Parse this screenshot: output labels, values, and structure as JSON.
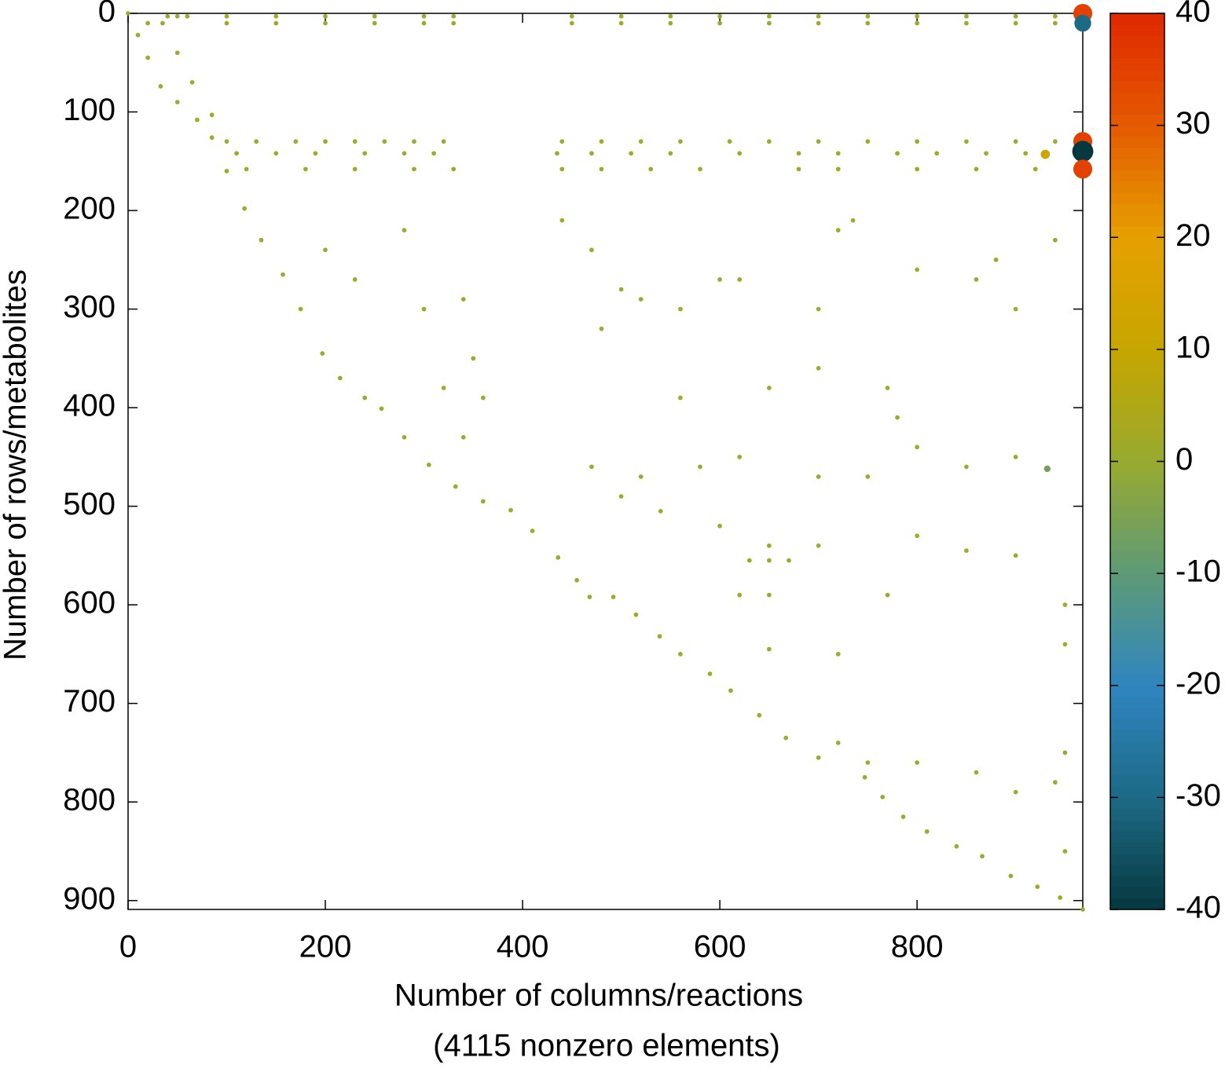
{
  "chart_data": {
    "type": "scatter",
    "xlabel": "Number of columns/reactions",
    "xlabel2": "(4115 nonzero elements)",
    "ylabel": "Number of rows/metabolites",
    "xlim": [
      0,
      968
    ],
    "ylim": [
      0,
      909
    ],
    "y_reversed": true,
    "xticks": [
      0,
      200,
      400,
      600,
      800
    ],
    "yticks": [
      0,
      100,
      200,
      300,
      400,
      500,
      600,
      700,
      800,
      900
    ],
    "clim": [
      -40,
      40
    ],
    "cticks": [
      40,
      30,
      20,
      10,
      0,
      -10,
      -20,
      -30,
      -40
    ],
    "colormap": [
      "#06393f",
      "#1d6a86",
      "#2f86c0",
      "#5d9a76",
      "#98aa30",
      "#c6a600",
      "#e6a000",
      "#e45a00",
      "#e02800"
    ],
    "points": [
      {
        "x": 0,
        "y": 0,
        "value": 1
      },
      {
        "x": 10,
        "y": 22,
        "value": 1
      },
      {
        "x": 20,
        "y": 45,
        "value": 1
      },
      {
        "x": 33,
        "y": 74,
        "value": 1
      },
      {
        "x": 50,
        "y": 90,
        "value": 1
      },
      {
        "x": 70,
        "y": 108,
        "value": 1
      },
      {
        "x": 85,
        "y": 126,
        "value": 1
      },
      {
        "x": 100,
        "y": 160,
        "value": 1
      },
      {
        "x": 118,
        "y": 198,
        "value": 1
      },
      {
        "x": 135,
        "y": 230,
        "value": 1
      },
      {
        "x": 157,
        "y": 265,
        "value": 1
      },
      {
        "x": 175,
        "y": 300,
        "value": 1
      },
      {
        "x": 197,
        "y": 345,
        "value": 1
      },
      {
        "x": 215,
        "y": 370,
        "value": 1
      },
      {
        "x": 240,
        "y": 390,
        "value": 1
      },
      {
        "x": 257,
        "y": 401,
        "value": 1
      },
      {
        "x": 280,
        "y": 430,
        "value": 1
      },
      {
        "x": 305,
        "y": 458,
        "value": 1
      },
      {
        "x": 332,
        "y": 480,
        "value": 1
      },
      {
        "x": 360,
        "y": 495,
        "value": 1
      },
      {
        "x": 388,
        "y": 504,
        "value": 1
      },
      {
        "x": 410,
        "y": 525,
        "value": 1
      },
      {
        "x": 436,
        "y": 552,
        "value": 1
      },
      {
        "x": 455,
        "y": 575,
        "value": 1
      },
      {
        "x": 468,
        "y": 592,
        "value": 1
      },
      {
        "x": 492,
        "y": 592,
        "value": 1
      },
      {
        "x": 515,
        "y": 610,
        "value": 1
      },
      {
        "x": 539,
        "y": 632,
        "value": 1
      },
      {
        "x": 560,
        "y": 650,
        "value": 1
      },
      {
        "x": 590,
        "y": 670,
        "value": 1
      },
      {
        "x": 611,
        "y": 687,
        "value": 1
      },
      {
        "x": 640,
        "y": 712,
        "value": 1
      },
      {
        "x": 667,
        "y": 735,
        "value": 1
      },
      {
        "x": 700,
        "y": 755,
        "value": 1
      },
      {
        "x": 747,
        "y": 775,
        "value": 1
      },
      {
        "x": 765,
        "y": 795,
        "value": 1
      },
      {
        "x": 786,
        "y": 815,
        "value": 1
      },
      {
        "x": 810,
        "y": 830,
        "value": 1
      },
      {
        "x": 840,
        "y": 845,
        "value": 1
      },
      {
        "x": 866,
        "y": 855,
        "value": 1
      },
      {
        "x": 895,
        "y": 875,
        "value": 1
      },
      {
        "x": 922,
        "y": 886,
        "value": 1
      },
      {
        "x": 945,
        "y": 897,
        "value": 1
      },
      {
        "x": 968,
        "y": 909,
        "value": 1
      },
      {
        "x": 35,
        "y": 10,
        "value": 1
      },
      {
        "x": 50,
        "y": 40,
        "value": 1
      },
      {
        "x": 65,
        "y": 70,
        "value": 1
      },
      {
        "x": 85,
        "y": 103,
        "value": 1
      },
      {
        "x": 40,
        "y": 3,
        "value": 1
      },
      {
        "x": 50,
        "y": 3,
        "value": 1
      },
      {
        "x": 60,
        "y": 3,
        "value": 1
      },
      {
        "x": 100,
        "y": 3,
        "value": 1
      },
      {
        "x": 150,
        "y": 3,
        "value": 1
      },
      {
        "x": 200,
        "y": 3,
        "value": 1
      },
      {
        "x": 250,
        "y": 3,
        "value": 1
      },
      {
        "x": 300,
        "y": 3,
        "value": 1
      },
      {
        "x": 330,
        "y": 3,
        "value": 1
      },
      {
        "x": 450,
        "y": 3,
        "value": 1
      },
      {
        "x": 500,
        "y": 3,
        "value": 1
      },
      {
        "x": 550,
        "y": 3,
        "value": 1
      },
      {
        "x": 600,
        "y": 3,
        "value": 1
      },
      {
        "x": 650,
        "y": 3,
        "value": 1
      },
      {
        "x": 700,
        "y": 3,
        "value": 1
      },
      {
        "x": 750,
        "y": 3,
        "value": 1
      },
      {
        "x": 800,
        "y": 3,
        "value": 1
      },
      {
        "x": 850,
        "y": 3,
        "value": 1
      },
      {
        "x": 900,
        "y": 3,
        "value": 1
      },
      {
        "x": 940,
        "y": 3,
        "value": 1
      },
      {
        "x": 20,
        "y": 10,
        "value": 1
      },
      {
        "x": 100,
        "y": 10,
        "value": 1
      },
      {
        "x": 150,
        "y": 10,
        "value": 1
      },
      {
        "x": 200,
        "y": 10,
        "value": 1
      },
      {
        "x": 250,
        "y": 10,
        "value": 1
      },
      {
        "x": 300,
        "y": 10,
        "value": 1
      },
      {
        "x": 330,
        "y": 10,
        "value": 1
      },
      {
        "x": 450,
        "y": 10,
        "value": 1
      },
      {
        "x": 500,
        "y": 10,
        "value": 1
      },
      {
        "x": 550,
        "y": 10,
        "value": 1
      },
      {
        "x": 600,
        "y": 10,
        "value": 1
      },
      {
        "x": 650,
        "y": 10,
        "value": 1
      },
      {
        "x": 700,
        "y": 10,
        "value": 1
      },
      {
        "x": 750,
        "y": 10,
        "value": 1
      },
      {
        "x": 800,
        "y": 10,
        "value": 1
      },
      {
        "x": 850,
        "y": 10,
        "value": 1
      },
      {
        "x": 900,
        "y": 10,
        "value": 1
      },
      {
        "x": 940,
        "y": 10,
        "value": 1
      },
      {
        "x": 100,
        "y": 130,
        "value": 1
      },
      {
        "x": 130,
        "y": 130,
        "value": 1
      },
      {
        "x": 170,
        "y": 130,
        "value": 1
      },
      {
        "x": 200,
        "y": 130,
        "value": 1
      },
      {
        "x": 230,
        "y": 130,
        "value": 1
      },
      {
        "x": 260,
        "y": 130,
        "value": 1
      },
      {
        "x": 290,
        "y": 130,
        "value": 1
      },
      {
        "x": 320,
        "y": 130,
        "value": 1
      },
      {
        "x": 440,
        "y": 130,
        "value": 1
      },
      {
        "x": 480,
        "y": 130,
        "value": 1
      },
      {
        "x": 520,
        "y": 130,
        "value": 1
      },
      {
        "x": 560,
        "y": 130,
        "value": 1
      },
      {
        "x": 610,
        "y": 130,
        "value": 1
      },
      {
        "x": 650,
        "y": 130,
        "value": 1
      },
      {
        "x": 700,
        "y": 130,
        "value": 1
      },
      {
        "x": 750,
        "y": 130,
        "value": 1
      },
      {
        "x": 800,
        "y": 130,
        "value": 1
      },
      {
        "x": 850,
        "y": 130,
        "value": 1
      },
      {
        "x": 900,
        "y": 130,
        "value": 1
      },
      {
        "x": 940,
        "y": 130,
        "value": 1
      },
      {
        "x": 110,
        "y": 142,
        "value": 1
      },
      {
        "x": 150,
        "y": 142,
        "value": 1
      },
      {
        "x": 190,
        "y": 142,
        "value": 1
      },
      {
        "x": 240,
        "y": 142,
        "value": 1
      },
      {
        "x": 280,
        "y": 142,
        "value": 1
      },
      {
        "x": 310,
        "y": 142,
        "value": 1
      },
      {
        "x": 435,
        "y": 142,
        "value": 1
      },
      {
        "x": 470,
        "y": 142,
        "value": 1
      },
      {
        "x": 510,
        "y": 142,
        "value": 1
      },
      {
        "x": 550,
        "y": 142,
        "value": 1
      },
      {
        "x": 620,
        "y": 142,
        "value": 1
      },
      {
        "x": 680,
        "y": 142,
        "value": 1
      },
      {
        "x": 720,
        "y": 142,
        "value": 1
      },
      {
        "x": 780,
        "y": 142,
        "value": 1
      },
      {
        "x": 820,
        "y": 142,
        "value": 1
      },
      {
        "x": 870,
        "y": 142,
        "value": 1
      },
      {
        "x": 910,
        "y": 142,
        "value": 1
      },
      {
        "x": 120,
        "y": 158,
        "value": 1
      },
      {
        "x": 180,
        "y": 158,
        "value": 1
      },
      {
        "x": 230,
        "y": 158,
        "value": 1
      },
      {
        "x": 290,
        "y": 158,
        "value": 1
      },
      {
        "x": 330,
        "y": 158,
        "value": 1
      },
      {
        "x": 440,
        "y": 158,
        "value": 1
      },
      {
        "x": 480,
        "y": 158,
        "value": 1
      },
      {
        "x": 530,
        "y": 158,
        "value": 1
      },
      {
        "x": 580,
        "y": 158,
        "value": 1
      },
      {
        "x": 680,
        "y": 158,
        "value": 1
      },
      {
        "x": 720,
        "y": 158,
        "value": 1
      },
      {
        "x": 800,
        "y": 158,
        "value": 1
      },
      {
        "x": 860,
        "y": 158,
        "value": 1
      },
      {
        "x": 920,
        "y": 158,
        "value": 1
      },
      {
        "x": 200,
        "y": 240,
        "value": 1
      },
      {
        "x": 230,
        "y": 270,
        "value": 1
      },
      {
        "x": 280,
        "y": 220,
        "value": 1
      },
      {
        "x": 340,
        "y": 290,
        "value": 1
      },
      {
        "x": 350,
        "y": 350,
        "value": 1
      },
      {
        "x": 360,
        "y": 390,
        "value": 1
      },
      {
        "x": 300,
        "y": 300,
        "value": 1
      },
      {
        "x": 500,
        "y": 280,
        "value": 1
      },
      {
        "x": 520,
        "y": 290,
        "value": 1
      },
      {
        "x": 560,
        "y": 300,
        "value": 1
      },
      {
        "x": 600,
        "y": 270,
        "value": 1
      },
      {
        "x": 620,
        "y": 270,
        "value": 1
      },
      {
        "x": 700,
        "y": 300,
        "value": 1
      },
      {
        "x": 720,
        "y": 220,
        "value": 1
      },
      {
        "x": 735,
        "y": 210,
        "value": 1
      },
      {
        "x": 800,
        "y": 260,
        "value": 1
      },
      {
        "x": 860,
        "y": 270,
        "value": 1
      },
      {
        "x": 880,
        "y": 250,
        "value": 1
      },
      {
        "x": 900,
        "y": 300,
        "value": 1
      },
      {
        "x": 940,
        "y": 230,
        "value": 1
      },
      {
        "x": 560,
        "y": 390,
        "value": 1
      },
      {
        "x": 650,
        "y": 380,
        "value": 1
      },
      {
        "x": 700,
        "y": 360,
        "value": 1
      },
      {
        "x": 770,
        "y": 380,
        "value": 1
      },
      {
        "x": 780,
        "y": 410,
        "value": 1
      },
      {
        "x": 800,
        "y": 440,
        "value": 1
      },
      {
        "x": 470,
        "y": 460,
        "value": 1
      },
      {
        "x": 520,
        "y": 470,
        "value": 1
      },
      {
        "x": 580,
        "y": 460,
        "value": 1
      },
      {
        "x": 620,
        "y": 450,
        "value": 1
      },
      {
        "x": 700,
        "y": 470,
        "value": 1
      },
      {
        "x": 750,
        "y": 470,
        "value": 1
      },
      {
        "x": 850,
        "y": 460,
        "value": 1
      },
      {
        "x": 900,
        "y": 450,
        "value": 1
      },
      {
        "x": 500,
        "y": 490,
        "value": 1
      },
      {
        "x": 540,
        "y": 505,
        "value": 1
      },
      {
        "x": 600,
        "y": 520,
        "value": 1
      },
      {
        "x": 650,
        "y": 540,
        "value": 1
      },
      {
        "x": 700,
        "y": 540,
        "value": 1
      },
      {
        "x": 800,
        "y": 530,
        "value": 1
      },
      {
        "x": 850,
        "y": 545,
        "value": 1
      },
      {
        "x": 900,
        "y": 550,
        "value": 1
      },
      {
        "x": 630,
        "y": 555,
        "value": 1
      },
      {
        "x": 650,
        "y": 555,
        "value": 1
      },
      {
        "x": 670,
        "y": 555,
        "value": 1
      },
      {
        "x": 620,
        "y": 590,
        "value": 1
      },
      {
        "x": 650,
        "y": 590,
        "value": 1
      },
      {
        "x": 770,
        "y": 590,
        "value": 1
      },
      {
        "x": 720,
        "y": 650,
        "value": 1
      },
      {
        "x": 650,
        "y": 645,
        "value": 1
      },
      {
        "x": 720,
        "y": 740,
        "value": 1
      },
      {
        "x": 750,
        "y": 760,
        "value": 1
      },
      {
        "x": 800,
        "y": 760,
        "value": 1
      },
      {
        "x": 860,
        "y": 770,
        "value": 1
      },
      {
        "x": 900,
        "y": 790,
        "value": 1
      },
      {
        "x": 940,
        "y": 780,
        "value": 1
      },
      {
        "x": 440,
        "y": 210,
        "value": 1
      },
      {
        "x": 470,
        "y": 240,
        "value": 1
      },
      {
        "x": 480,
        "y": 320,
        "value": 1
      },
      {
        "x": 320,
        "y": 380,
        "value": 1
      },
      {
        "x": 340,
        "y": 430,
        "value": 1
      },
      {
        "x": 950,
        "y": 640,
        "value": 1
      },
      {
        "x": 950,
        "y": 600,
        "value": 1
      },
      {
        "x": 950,
        "y": 750,
        "value": 1
      },
      {
        "x": 950,
        "y": 850,
        "value": 1
      },
      {
        "x": 968,
        "y": 0,
        "value": 35
      },
      {
        "x": 968,
        "y": 10,
        "value": -30
      },
      {
        "x": 968,
        "y": 130,
        "value": 35
      },
      {
        "x": 968,
        "y": 140,
        "value": -40
      },
      {
        "x": 968,
        "y": 158,
        "value": 35
      },
      {
        "x": 930,
        "y": 143,
        "value": 12
      },
      {
        "x": 932,
        "y": 462,
        "value": -6
      }
    ]
  }
}
